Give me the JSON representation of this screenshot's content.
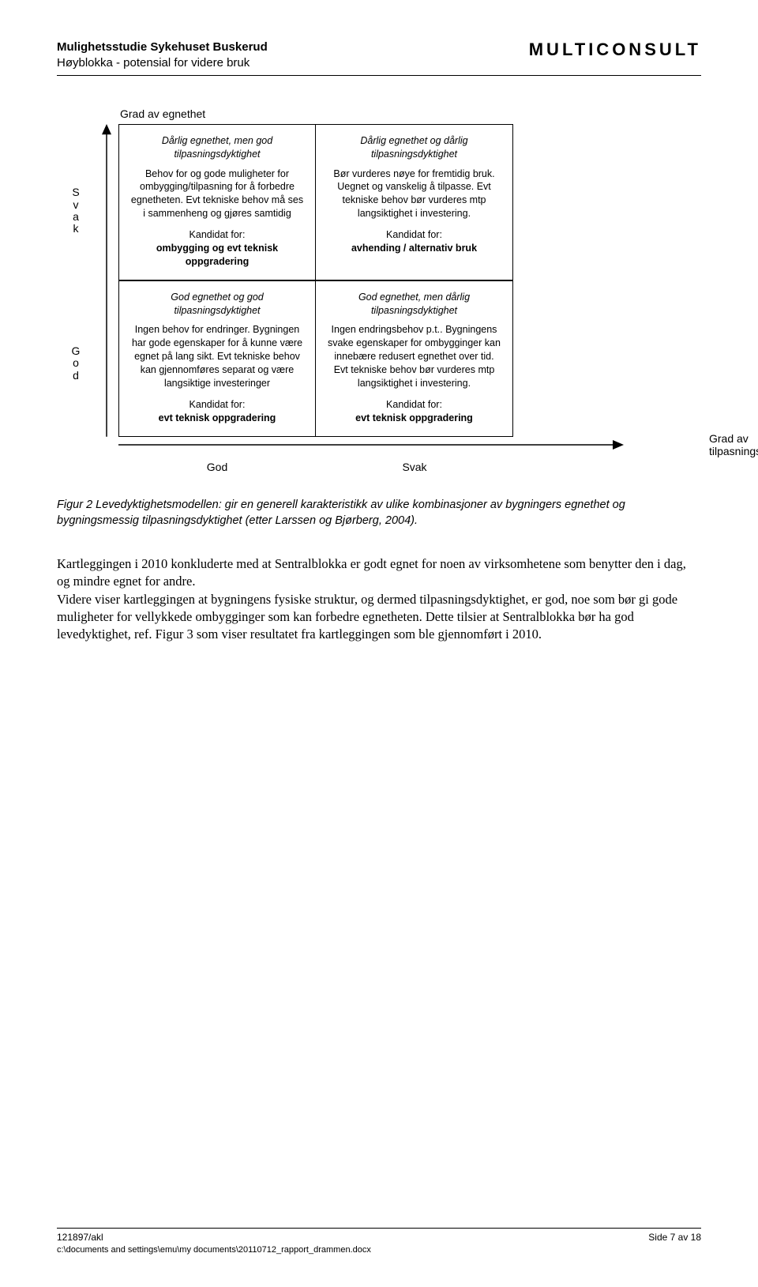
{
  "header": {
    "title_line1": "Mulighetsstudie Sykehuset Buskerud",
    "title_line2": "Høyblokka - potensial for videre bruk",
    "brand": "MULTICONSULT"
  },
  "diagram": {
    "y_axis_label": "Grad av egnethet",
    "x_axis_label": "Grad av tilpasningsdyktighet",
    "y_ticks": [
      "S",
      "v",
      "a",
      "k",
      "G",
      "o",
      "d"
    ],
    "y_tick_top": "Svak",
    "y_tick_bottom": "God",
    "x_tick_left": "God",
    "x_tick_right": "Svak",
    "cells": {
      "tl": {
        "title": "Dårlig egnethet, men god tilpasningsdyktighet",
        "body": "Behov for og gode muligheter for ombygging/tilpasning for å forbedre egnetheten. Evt tekniske behov må ses i sammenheng og gjøres samtidig",
        "cand_label": "Kandidat for:",
        "cand": "ombygging og evt teknisk oppgradering"
      },
      "tr": {
        "title": "Dårlig egnethet og dårlig tilpasningsdyktighet",
        "body": "Bør vurderes nøye for fremtidig bruk. Uegnet og vanskelig å tilpasse. Evt tekniske behov bør vurderes mtp langsiktighet i investering.",
        "cand_label": "Kandidat for:",
        "cand": "avhending / alternativ bruk"
      },
      "bl": {
        "title": "God egnethet og god tilpasningsdyktighet",
        "body": "Ingen behov for endringer. Bygningen har gode egenskaper for å kunne være egnet på lang sikt. Evt tekniske behov kan gjennomføres separat og være langsiktige investeringer",
        "cand_label": "Kandidat for:",
        "cand": "evt teknisk oppgradering"
      },
      "br": {
        "title": "God egnethet, men dårlig tilpasningsdyktighet",
        "body": "Ingen endringsbehov p.t.. Bygningens svake egenskaper for ombygginger kan innebære redusert egnethet over tid. Evt tekniske behov bør vurderes mtp langsiktighet i investering.",
        "cand_label": "Kandidat for:",
        "cand": "evt teknisk oppgradering"
      }
    },
    "colors": {
      "border": "#000000",
      "background": "#ffffff",
      "text": "#000000"
    }
  },
  "caption": "Figur 2 Levedyktighetsmodellen: gir en generell karakteristikk av ulike kombinasjoner av bygningers egnethet og bygningsmessig tilpasningsdyktighet (etter Larssen og Bjørberg, 2004).",
  "body_paragraph": "Kartleggingen i 2010 konkluderte med at Sentralblokka er godt egnet for noen av virksomhetene som benytter den i dag, og mindre egnet for andre.\nVidere viser kartleggingen at bygningens fysiske struktur, og dermed tilpasningsdyktighet, er god, noe som bør gi gode muligheter for vellykkede ombygginger som kan forbedre egnetheten. Dette tilsier at Sentralblokka bør ha god levedyktighet, ref. Figur 3 som viser resultatet fra kartleggingen som ble gjennomført i 2010.",
  "footer": {
    "ref": "121897/akl",
    "path": "c:\\documents and settings\\emu\\my documents\\20110712_rapport_drammen.docx",
    "page": "Side 7 av 18"
  }
}
